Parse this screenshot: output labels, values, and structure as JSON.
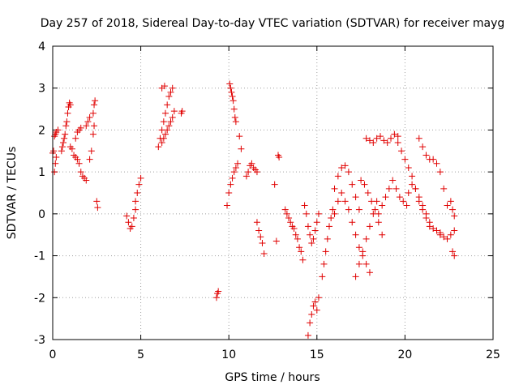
{
  "chart_data": {
    "type": "scatter",
    "title": "Day 257 of 2018, Sidereal Day-to-day VTEC variation (SDTVAR) for receiver mayg",
    "xlabel": "GPS time / hours",
    "ylabel": "SDTVAR / TECUs",
    "xlim": [
      0,
      25
    ],
    "ylim": [
      -3,
      4
    ],
    "xticks": [
      0,
      5,
      10,
      15,
      20,
      25
    ],
    "yticks": [
      -3,
      -2,
      -1,
      0,
      1,
      2,
      3,
      4
    ],
    "grid": true,
    "marker": "+",
    "color": "#e00000",
    "segments": [
      {
        "x": [
          0.0,
          0.05,
          0.1,
          0.15,
          0.2,
          0.3
        ],
        "y": [
          1.45,
          1.5,
          1.85,
          1.9,
          1.95,
          2.0
        ]
      },
      {
        "x": [
          0.1,
          0.15,
          0.2
        ],
        "y": [
          1.0,
          1.2,
          1.35
        ]
      },
      {
        "x": [
          0.5,
          0.55,
          0.6,
          0.65,
          0.7
        ],
        "y": [
          1.5,
          1.6,
          1.7,
          1.8,
          1.9
        ]
      },
      {
        "x": [
          0.75,
          0.8,
          0.85,
          0.9,
          0.95,
          1.0
        ],
        "y": [
          2.1,
          2.2,
          2.4,
          2.55,
          2.65,
          2.6
        ]
      },
      {
        "x": [
          1.0,
          1.1,
          1.2,
          1.3,
          1.4,
          1.5,
          1.6,
          1.7,
          1.8,
          1.9
        ],
        "y": [
          1.6,
          1.55,
          1.4,
          1.35,
          1.3,
          1.2,
          1.0,
          0.9,
          0.85,
          0.8
        ]
      },
      {
        "x": [
          1.3,
          1.4,
          1.5,
          1.6
        ],
        "y": [
          1.8,
          1.95,
          2.0,
          2.05
        ]
      },
      {
        "x": [
          1.9,
          2.0,
          2.1
        ],
        "y": [
          2.1,
          2.2,
          2.3
        ]
      },
      {
        "x": [
          2.1,
          2.2,
          2.3,
          2.35
        ],
        "y": [
          1.3,
          1.5,
          1.9,
          2.1
        ]
      },
      {
        "x": [
          2.3,
          2.35,
          2.4
        ],
        "y": [
          2.4,
          2.6,
          2.7
        ]
      },
      {
        "x": [
          2.5,
          2.55
        ],
        "y": [
          0.3,
          0.15
        ]
      },
      {
        "x": [
          4.2,
          4.3,
          4.4,
          4.5,
          4.6,
          4.7
        ],
        "y": [
          -0.05,
          -0.2,
          -0.35,
          -0.3,
          -0.1,
          0.1
        ]
      },
      {
        "x": [
          4.7,
          4.8,
          4.9,
          5.0
        ],
        "y": [
          0.3,
          0.5,
          0.7,
          0.85
        ]
      },
      {
        "x": [
          6.0,
          6.1,
          6.2,
          6.3,
          6.4,
          6.5,
          6.6,
          6.7,
          6.8
        ],
        "y": [
          1.6,
          1.8,
          2.0,
          2.2,
          2.4,
          2.6,
          2.8,
          2.9,
          3.0
        ]
      },
      {
        "x": [
          6.2,
          6.3,
          6.4,
          6.5,
          6.6,
          6.7,
          6.8,
          6.9
        ],
        "y": [
          1.7,
          1.8,
          1.9,
          2.0,
          2.1,
          2.2,
          2.3,
          2.45
        ]
      },
      {
        "x": [
          6.2,
          6.35
        ],
        "y": [
          3.0,
          3.05
        ]
      },
      {
        "x": [
          7.3,
          7.35
        ],
        "y": [
          2.4,
          2.45
        ]
      },
      {
        "x": [
          9.3,
          9.35,
          9.4
        ],
        "y": [
          -2.0,
          -1.9,
          -1.85
        ]
      },
      {
        "x": [
          9.9,
          10.0,
          10.1,
          10.2,
          10.3,
          10.4,
          10.5
        ],
        "y": [
          0.2,
          0.5,
          0.7,
          0.85,
          1.0,
          1.1,
          1.2
        ]
      },
      {
        "x": [
          10.05,
          10.1,
          10.15,
          10.2,
          10.25,
          10.3,
          10.35,
          10.4
        ],
        "y": [
          3.1,
          3.0,
          2.9,
          2.8,
          2.7,
          2.5,
          2.3,
          2.2
        ]
      },
      {
        "x": [
          10.6,
          10.7
        ],
        "y": [
          1.85,
          1.55
        ]
      },
      {
        "x": [
          11.0,
          11.1,
          11.2,
          11.3,
          11.4,
          11.5,
          11.6
        ],
        "y": [
          0.9,
          1.0,
          1.15,
          1.2,
          1.1,
          1.05,
          1.0
        ]
      },
      {
        "x": [
          11.6,
          11.7,
          11.8,
          11.9,
          12.0
        ],
        "y": [
          -0.2,
          -0.4,
          -0.55,
          -0.7,
          -0.95
        ]
      },
      {
        "x": [
          12.6,
          12.7
        ],
        "y": [
          0.7,
          -0.65
        ]
      },
      {
        "x": [
          12.8,
          12.85
        ],
        "y": [
          1.4,
          1.35
        ]
      },
      {
        "x": [
          13.2,
          13.3,
          13.4,
          13.5,
          13.6,
          13.7,
          13.8,
          13.9,
          14.0,
          14.1,
          14.2
        ],
        "y": [
          0.1,
          0.0,
          -0.1,
          -0.2,
          -0.3,
          -0.35,
          -0.5,
          -0.6,
          -0.8,
          -0.9,
          -1.1
        ]
      },
      {
        "x": [
          14.3,
          14.4,
          14.5,
          14.6,
          14.7,
          14.8,
          14.9,
          15.0,
          15.1
        ],
        "y": [
          0.2,
          0.0,
          -0.3,
          -0.5,
          -0.7,
          -0.6,
          -0.4,
          -0.2,
          0.0
        ]
      },
      {
        "x": [
          14.5,
          14.6,
          14.7,
          14.8,
          14.9,
          15.0,
          15.1
        ],
        "y": [
          -2.9,
          -2.6,
          -2.4,
          -2.2,
          -2.1,
          -2.3,
          -2.0
        ]
      },
      {
        "x": [
          15.3,
          15.4,
          15.5,
          15.6,
          15.7,
          15.8,
          15.9,
          16.0
        ],
        "y": [
          -1.5,
          -1.2,
          -0.9,
          -0.6,
          -0.3,
          -0.1,
          0.1,
          0.0
        ]
      },
      {
        "x": [
          16.0,
          16.2,
          16.4,
          16.6,
          16.8,
          17.0,
          17.2,
          17.4
        ],
        "y": [
          0.6,
          0.9,
          1.1,
          1.15,
          1.0,
          0.7,
          0.4,
          0.1
        ]
      },
      {
        "x": [
          16.2,
          16.4,
          16.6,
          16.8,
          17.0,
          17.2,
          17.4,
          17.6,
          17.8,
          18.0
        ],
        "y": [
          0.3,
          0.5,
          0.3,
          0.1,
          -0.2,
          -0.5,
          -0.8,
          -1.0,
          -1.2,
          -1.4
        ]
      },
      {
        "x": [
          17.2,
          17.4,
          17.6,
          17.8,
          18.0,
          18.2,
          18.4
        ],
        "y": [
          -1.5,
          -1.2,
          -0.9,
          -0.6,
          -0.3,
          0.0,
          0.3
        ]
      },
      {
        "x": [
          17.5,
          17.7,
          17.9,
          18.1,
          18.3,
          18.5,
          18.7
        ],
        "y": [
          0.8,
          0.7,
          0.5,
          0.3,
          0.1,
          -0.2,
          -0.5
        ]
      },
      {
        "x": [
          17.8,
          18.0,
          18.2,
          18.4,
          18.6,
          18.8,
          19.0,
          19.2,
          19.4,
          19.6
        ],
        "y": [
          1.8,
          1.75,
          1.7,
          1.8,
          1.85,
          1.75,
          1.7,
          1.8,
          1.9,
          1.85
        ]
      },
      {
        "x": [
          18.5,
          18.7,
          18.9,
          19.1,
          19.3,
          19.5,
          19.7,
          19.9,
          20.1
        ],
        "y": [
          0.0,
          0.2,
          0.4,
          0.6,
          0.8,
          0.6,
          0.4,
          0.3,
          0.2
        ]
      },
      {
        "x": [
          19.6,
          19.8,
          20.0,
          20.2,
          20.4,
          20.6,
          20.8,
          21.0,
          21.2,
          21.4
        ],
        "y": [
          1.7,
          1.5,
          1.3,
          1.1,
          0.9,
          0.6,
          0.3,
          0.1,
          -0.1,
          -0.3
        ]
      },
      {
        "x": [
          20.2,
          20.4,
          20.6,
          20.8,
          21.0,
          21.2,
          21.4,
          21.6,
          21.8,
          22.0
        ],
        "y": [
          0.5,
          0.7,
          0.6,
          0.4,
          0.2,
          0.0,
          -0.2,
          -0.35,
          -0.4,
          -0.45
        ]
      },
      {
        "x": [
          20.8,
          21.0,
          21.2,
          21.4,
          21.6,
          21.8,
          22.0,
          22.2,
          22.4
        ],
        "y": [
          1.8,
          1.6,
          1.4,
          1.3,
          1.3,
          1.2,
          1.0,
          0.6,
          0.2
        ]
      },
      {
        "x": [
          22.0,
          22.2,
          22.4,
          22.6,
          22.8
        ],
        "y": [
          -0.5,
          -0.55,
          -0.6,
          -0.5,
          -0.4
        ]
      },
      {
        "x": [
          22.6,
          22.7,
          22.8
        ],
        "y": [
          0.3,
          0.1,
          -0.05
        ]
      },
      {
        "x": [
          22.7,
          22.8
        ],
        "y": [
          -0.9,
          -1.0
        ]
      }
    ]
  }
}
